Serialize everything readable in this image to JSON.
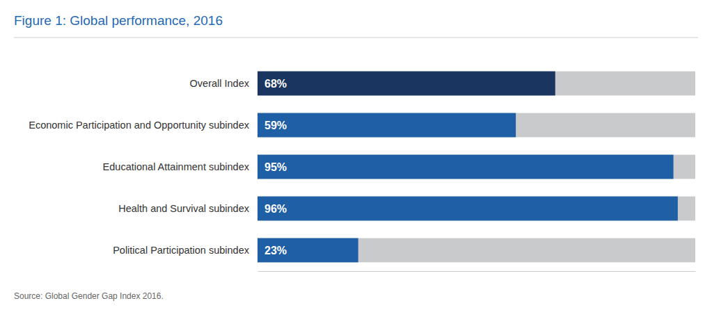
{
  "chart_data": {
    "type": "bar",
    "orientation": "horizontal",
    "title": "Figure 1: Global performance, 2016",
    "annotations": [
      "Source: Global Gender Gap Index 2016."
    ],
    "categories": [
      "Overall Index",
      "Economic Participation and Opportunity subindex",
      "Educational Attainment subindex",
      "Health and Survival subindex",
      "Political Participation subindex"
    ],
    "values": [
      68,
      59,
      95,
      96,
      23
    ],
    "value_labels": [
      "68%",
      "59%",
      "95%",
      "96%",
      "23%"
    ],
    "colors": [
      "#1a3560",
      "#1f5fa6",
      "#1f5fa6",
      "#1f5fa6",
      "#1f5fa6"
    ],
    "xlim": [
      0,
      100
    ],
    "data_labels": true,
    "tick_labels": false,
    "grid": false
  }
}
